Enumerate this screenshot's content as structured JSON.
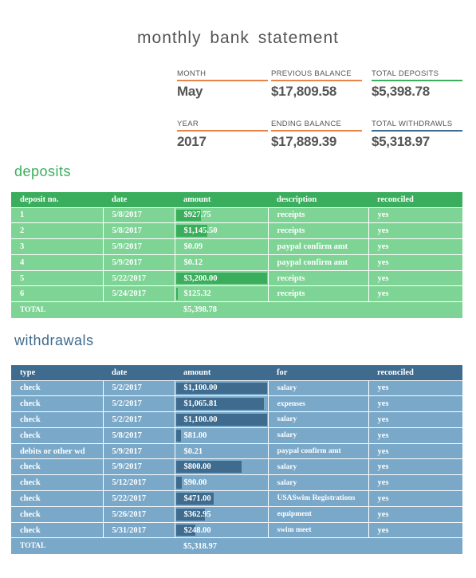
{
  "title": "monthly bank statement",
  "colors": {
    "orange": "#e8844a",
    "green": "#3aae5c",
    "blue": "#3e6b8e"
  },
  "summary": {
    "month_label": "MONTH",
    "month": "May",
    "year_label": "YEAR",
    "year": "2017",
    "previous_balance_label": "PREVIOUS BALANCE",
    "previous_balance": "$17,809.58",
    "ending_balance_label": "ENDING BALANCE",
    "ending_balance": "$17,889.39",
    "total_deposits_label": "TOTAL DEPOSITS",
    "total_deposits": "$5,398.78",
    "total_withdrawals_label": "TOTAL WITHDRAWLS",
    "total_withdrawals": "$5,318.97"
  },
  "deposits": {
    "title": "deposits",
    "headers": [
      "deposit no.",
      "date",
      "amount",
      "description",
      "reconciled"
    ],
    "bar_max": 3200,
    "rows": [
      {
        "no": "1",
        "date": "5/8/2017",
        "amount": "$927.75",
        "value": 927.75,
        "description": "receipts",
        "reconciled": "yes"
      },
      {
        "no": "2",
        "date": "5/8/2017",
        "amount": "$1,145.50",
        "value": 1145.5,
        "description": "receipts",
        "reconciled": "yes"
      },
      {
        "no": "3",
        "date": "5/9/2017",
        "amount": "$0.09",
        "value": 0.09,
        "description": "paypal confirm amt",
        "reconciled": "yes"
      },
      {
        "no": "4",
        "date": "5/9/2017",
        "amount": "$0.12",
        "value": 0.12,
        "description": "paypal confirm amt",
        "reconciled": "yes"
      },
      {
        "no": "5",
        "date": "5/22/2017",
        "amount": "$3,200.00",
        "value": 3200.0,
        "description": "receipts",
        "reconciled": "yes"
      },
      {
        "no": "6",
        "date": "5/24/2017",
        "amount": "$125.32",
        "value": 125.32,
        "description": "receipts",
        "reconciled": "yes"
      }
    ],
    "total_label": "TOTAL",
    "total": "$5,398.78"
  },
  "withdrawals": {
    "title": "withdrawals",
    "headers": [
      "type",
      "date",
      "amount",
      "for",
      "reconciled"
    ],
    "bar_max": 1100,
    "rows": [
      {
        "type": "check",
        "date": "5/2/2017",
        "amount": "$1,100.00",
        "value": 1100.0,
        "for": "salary",
        "reconciled": "yes"
      },
      {
        "type": "check",
        "date": "5/2/2017",
        "amount": "$1,065.81",
        "value": 1065.81,
        "for": "expenses",
        "reconciled": "yes"
      },
      {
        "type": "check",
        "date": "5/2/2017",
        "amount": "$1,100.00",
        "value": 1100.0,
        "for": "salary",
        "reconciled": "yes"
      },
      {
        "type": "check",
        "date": "5/8/2017",
        "amount": "$81.00",
        "value": 81.0,
        "for": "salary",
        "reconciled": "yes"
      },
      {
        "type": "debits or other wd",
        "date": "5/9/2017",
        "amount": "$0.21",
        "value": 0.21,
        "for": "paypal confirm amt",
        "reconciled": "yes"
      },
      {
        "type": "check",
        "date": "5/9/2017",
        "amount": "$800.00",
        "value": 800.0,
        "for": "salary",
        "reconciled": "yes"
      },
      {
        "type": "check",
        "date": "5/12/2017",
        "amount": "$90.00",
        "value": 90.0,
        "for": "salary",
        "reconciled": "yes"
      },
      {
        "type": "check",
        "date": "5/22/2017",
        "amount": "$471.00",
        "value": 471.0,
        "for": "USASwim Registrations",
        "reconciled": "yes"
      },
      {
        "type": "check",
        "date": "5/26/2017",
        "amount": "$362.95",
        "value": 362.95,
        "for": "equipment",
        "reconciled": "yes"
      },
      {
        "type": "check",
        "date": "5/31/2017",
        "amount": "$248.00",
        "value": 248.0,
        "for": "swim meet",
        "reconciled": "yes"
      }
    ],
    "total_label": "TOTAL",
    "total": "$5,318.97"
  }
}
